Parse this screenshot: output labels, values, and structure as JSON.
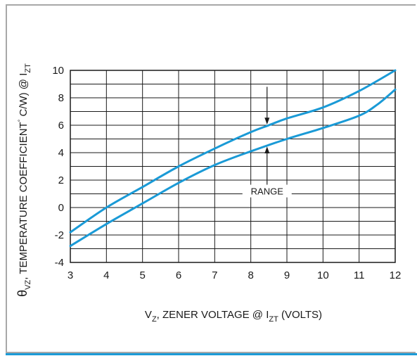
{
  "chart_data": {
    "type": "line",
    "x_ticks": [
      "3",
      "4",
      "5",
      "6",
      "7",
      "8",
      "9",
      "10",
      "11",
      "12"
    ],
    "y_ticks": [
      "-4",
      "-2",
      "0",
      "2",
      "4",
      "6",
      "8",
      "10"
    ],
    "xlim": [
      3,
      12
    ],
    "ylim": [
      -4,
      10
    ],
    "grid": true,
    "xlabel": {
      "pre": "V",
      "sub1": "Z",
      "mid": ", ZENER VOLTAGE @ I",
      "sub2": "ZT",
      "post": " (VOLTS)"
    },
    "ylabel": {
      "pre": "θ",
      "sub1": "VZ",
      "mid": ", TEMPERATURE COEFFICIENT",
      "sup": "°",
      "mid2": " C/W) @ I",
      "sub2": "ZT"
    },
    "annotation": "RANGE",
    "series": [
      {
        "x": [
          3,
          4,
          5,
          6,
          7,
          8,
          8.5,
          9,
          10,
          11,
          12
        ],
        "y": [
          -1.8,
          0,
          1.5,
          3,
          4.3,
          5.5,
          6,
          6.5,
          7.3,
          8.5,
          10
        ]
      },
      {
        "x": [
          3,
          4,
          5,
          6,
          7,
          8,
          9,
          10,
          11,
          11.5,
          12
        ],
        "y": [
          -2.8,
          -1.2,
          0.3,
          1.8,
          3.1,
          4.1,
          5,
          5.8,
          6.7,
          7.5,
          8.6
        ]
      }
    ],
    "colors": {
      "line": "#1a9ad6",
      "grid": "#1a1a1a",
      "text": "#1a1a1a"
    }
  }
}
